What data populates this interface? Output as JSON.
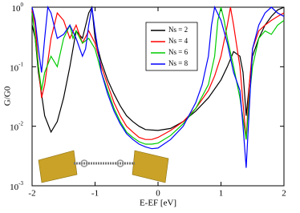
{
  "chart_data": {
    "type": "line",
    "xlabel": "E-EF [eV]",
    "ylabel": "G/G0",
    "xlim": [
      -2,
      2
    ],
    "xticks": [
      -2,
      -1,
      0,
      1,
      2
    ],
    "ylim": [
      0.001,
      1
    ],
    "log_y": true,
    "yticks": [
      {
        "value": 0.001,
        "label": "10",
        "sup": "-3"
      },
      {
        "value": 0.01,
        "label": "10",
        "sup": "-2"
      },
      {
        "value": 0.1,
        "label": "10",
        "sup": "-1"
      },
      {
        "value": 1,
        "label": "10",
        "sup": "0"
      }
    ],
    "legend": "upper center",
    "series": [
      {
        "name": "Ns = 2",
        "color": "#000000",
        "x": [
          -2,
          -1.95,
          -1.9,
          -1.8,
          -1.7,
          -1.6,
          -1.5,
          -1.4,
          -1.3,
          -1.2,
          -1.1,
          -1.05,
          -1,
          -0.9,
          -0.8,
          -0.7,
          -0.6,
          -0.5,
          -0.4,
          -0.3,
          -0.2,
          0,
          0.2,
          0.4,
          0.6,
          0.8,
          1,
          1.1,
          1.2,
          1.3,
          1.35,
          1.4,
          1.45,
          1.5,
          1.6,
          1.7,
          1.8,
          1.9,
          2
        ],
        "values": [
          0.5,
          0.3,
          0.08,
          0.015,
          0.008,
          0.012,
          0.03,
          0.1,
          0.4,
          0.3,
          0.8,
          1,
          0.3,
          0.12,
          0.06,
          0.035,
          0.022,
          0.015,
          0.012,
          0.01,
          0.0088,
          0.0085,
          0.0092,
          0.012,
          0.018,
          0.03,
          0.06,
          0.1,
          0.18,
          0.15,
          0.08,
          0.015,
          0.05,
          0.15,
          0.3,
          0.5,
          0.7,
          0.9,
          1
        ]
      },
      {
        "name": "Ns = 4",
        "color": "#ff0000",
        "x": [
          -2,
          -1.95,
          -1.9,
          -1.85,
          -1.8,
          -1.7,
          -1.6,
          -1.5,
          -1.4,
          -1.3,
          -1.2,
          -1.1,
          -1,
          -0.9,
          -0.8,
          -0.7,
          -0.6,
          -0.5,
          -0.4,
          -0.3,
          -0.2,
          -0.1,
          0,
          0.2,
          0.4,
          0.6,
          0.8,
          0.9,
          1,
          1.1,
          1.15,
          1.2,
          1.3,
          1.4,
          1.45,
          1.5,
          1.6,
          1.7,
          1.8,
          1.9,
          2
        ],
        "values": [
          0.9,
          0.5,
          0.1,
          0.03,
          0.05,
          0.3,
          0.8,
          0.6,
          0.3,
          0.5,
          0.25,
          0.4,
          0.25,
          0.1,
          0.05,
          0.025,
          0.015,
          0.01,
          0.008,
          0.0065,
          0.006,
          0.006,
          0.0065,
          0.0085,
          0.012,
          0.02,
          0.04,
          0.07,
          0.15,
          0.5,
          1,
          0.5,
          0.1,
          0.006,
          0.05,
          0.2,
          0.4,
          0.5,
          0.6,
          0.7,
          0.8
        ]
      },
      {
        "name": "Ns = 6",
        "color": "#00cc00",
        "x": [
          -2,
          -1.95,
          -1.9,
          -1.85,
          -1.8,
          -1.7,
          -1.6,
          -1.5,
          -1.4,
          -1.35,
          -1.3,
          -1.2,
          -1.1,
          -1,
          -0.9,
          -0.8,
          -0.7,
          -0.6,
          -0.5,
          -0.4,
          -0.3,
          -0.2,
          -0.1,
          0,
          0.2,
          0.4,
          0.6,
          0.8,
          0.9,
          0.95,
          1,
          1.05,
          1.1,
          1.2,
          1.3,
          1.4,
          1.45,
          1.5,
          1.6,
          1.7,
          1.8,
          1.9,
          2
        ],
        "values": [
          0.8,
          0.3,
          0.1,
          0.04,
          0.08,
          0.15,
          0.1,
          0.3,
          0.5,
          0.3,
          0.4,
          0.25,
          0.3,
          0.2,
          0.08,
          0.04,
          0.02,
          0.012,
          0.008,
          0.0065,
          0.0055,
          0.005,
          0.005,
          0.0052,
          0.007,
          0.011,
          0.02,
          0.05,
          0.15,
          0.6,
          1,
          0.6,
          0.3,
          0.1,
          0.03,
          0.006,
          0.03,
          0.1,
          0.3,
          0.4,
          0.35,
          0.5,
          0.6
        ]
      },
      {
        "name": "Ns = 8",
        "color": "#0000ff",
        "x": [
          -2,
          -1.95,
          -1.9,
          -1.85,
          -1.8,
          -1.75,
          -1.7,
          -1.6,
          -1.5,
          -1.4,
          -1.3,
          -1.2,
          -1.15,
          -1.1,
          -1.05,
          -1,
          -0.9,
          -0.8,
          -0.7,
          -0.6,
          -0.5,
          -0.4,
          -0.3,
          -0.2,
          -0.1,
          0,
          0.2,
          0.4,
          0.6,
          0.7,
          0.8,
          0.85,
          0.9,
          1,
          1.1,
          1.2,
          1.3,
          1.35,
          1.4,
          1.45,
          1.5,
          1.6,
          1.7,
          1.8,
          1.9,
          2
        ],
        "values": [
          1,
          0.6,
          0.2,
          0.08,
          0.3,
          1,
          0.8,
          0.3,
          0.35,
          0.5,
          0.3,
          0.15,
          0.2,
          0.5,
          1,
          0.4,
          0.08,
          0.035,
          0.018,
          0.011,
          0.0075,
          0.006,
          0.005,
          0.0045,
          0.0042,
          0.0043,
          0.006,
          0.01,
          0.025,
          0.05,
          0.15,
          0.5,
          1,
          0.6,
          0.25,
          0.08,
          0.04,
          0.01,
          0.002,
          0.02,
          0.2,
          0.5,
          0.8,
          1,
          0.8,
          0.7
        ]
      }
    ]
  }
}
